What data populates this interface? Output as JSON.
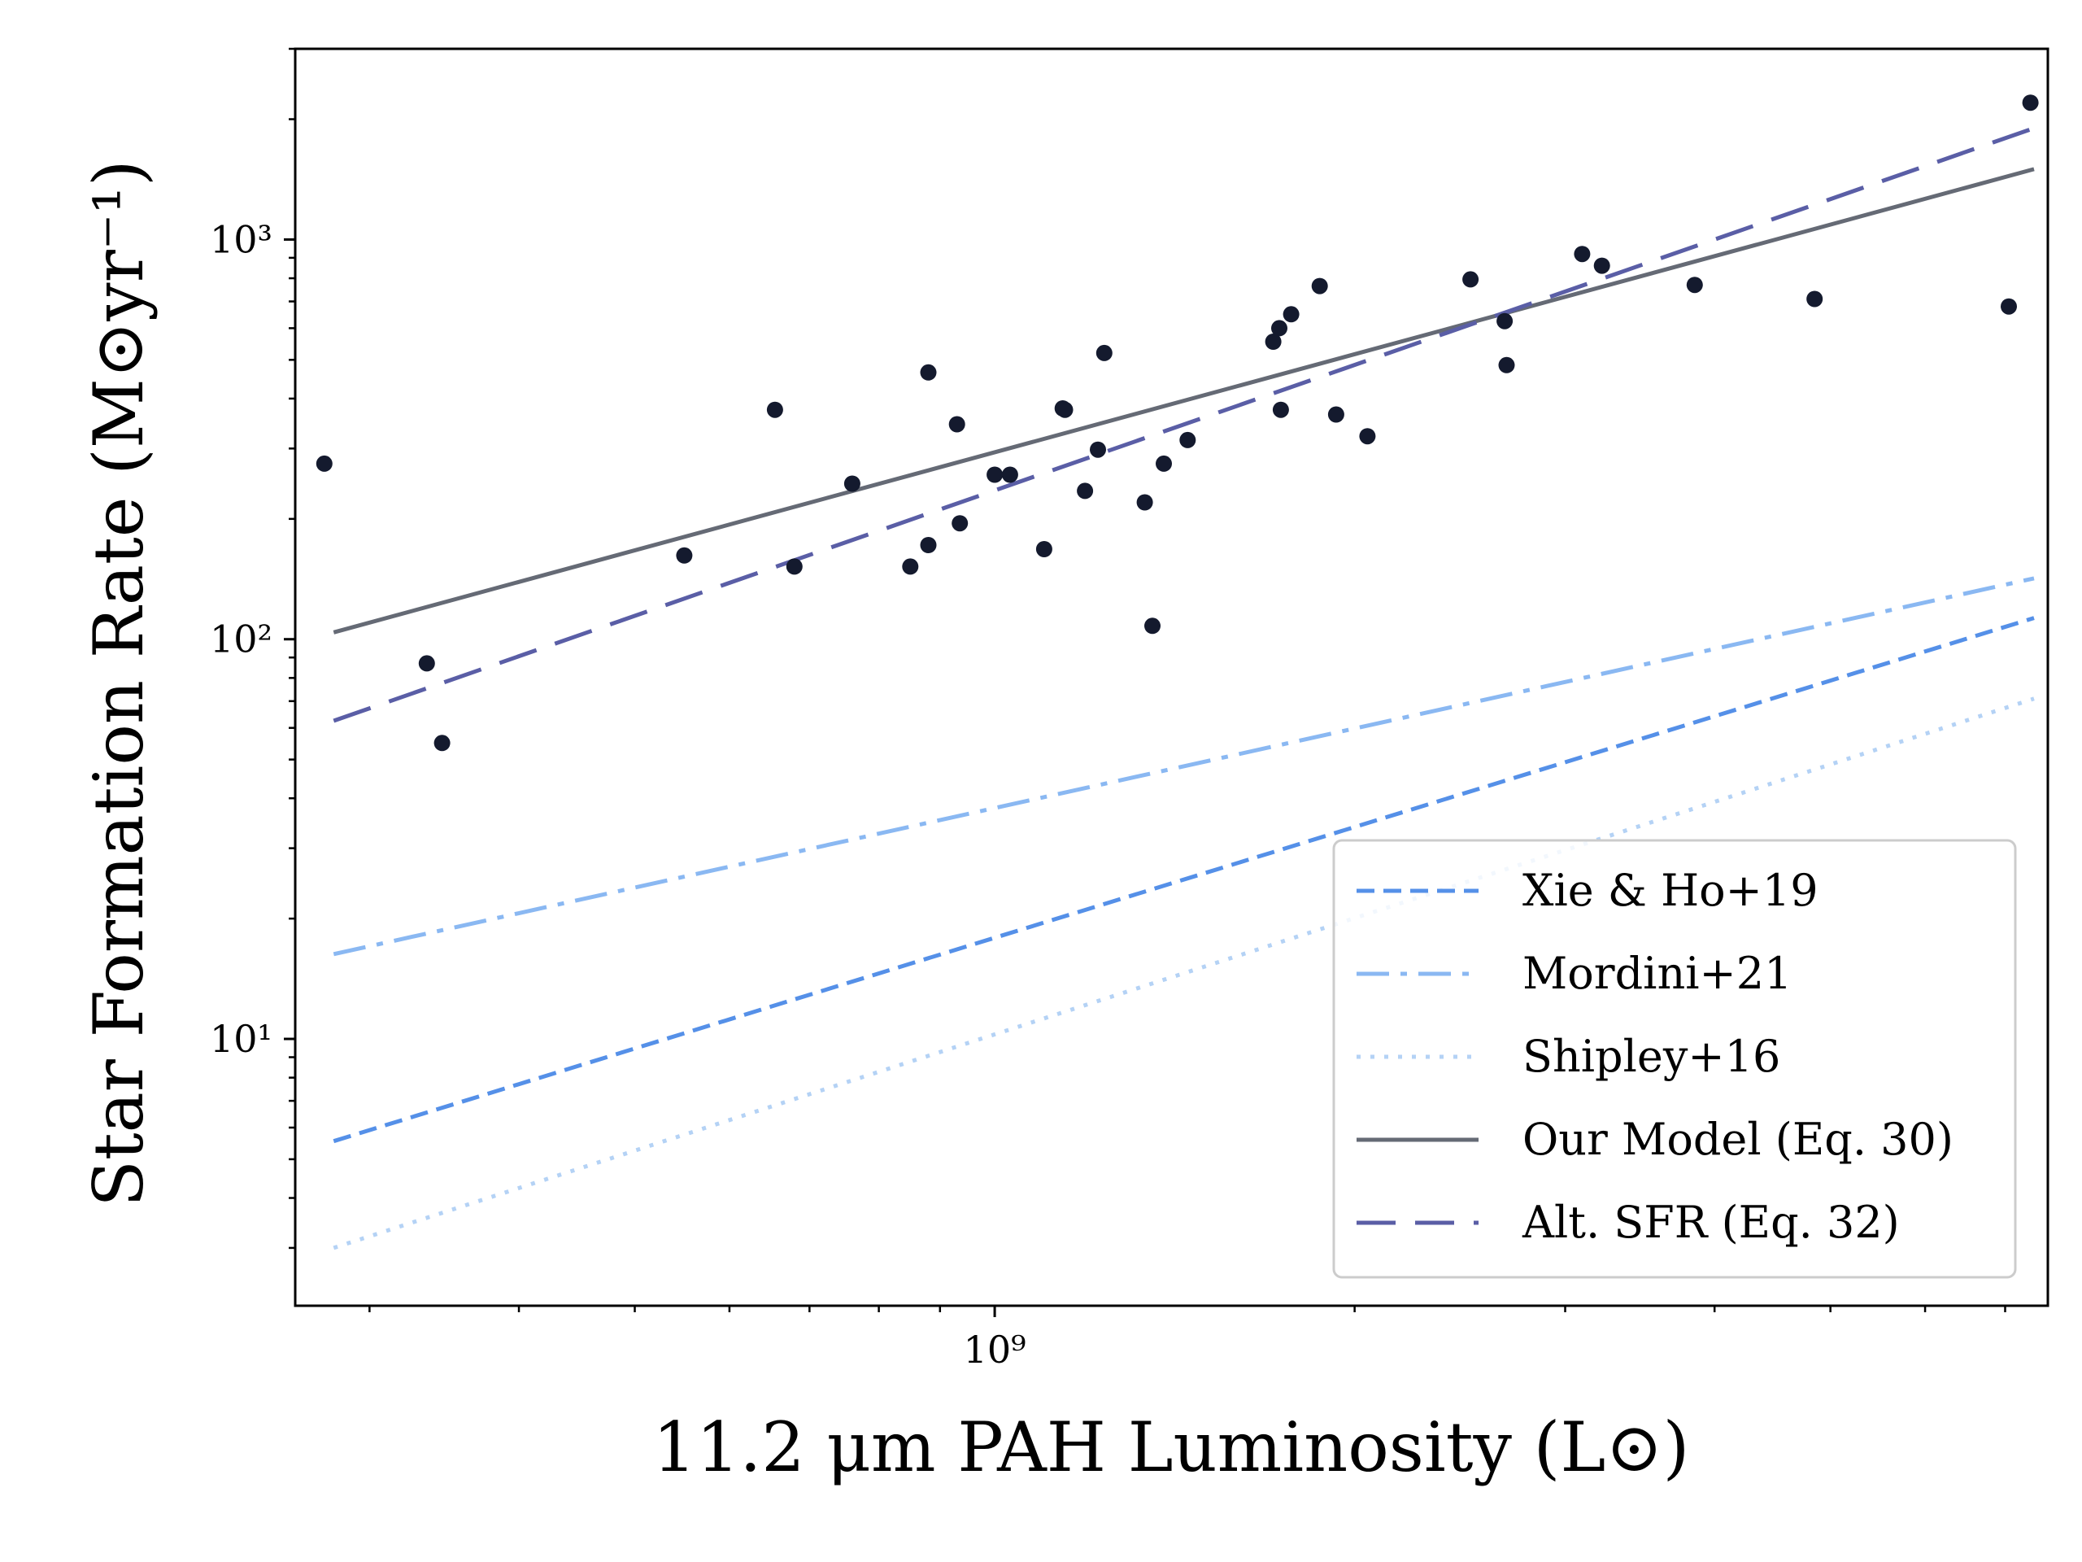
{
  "chart_data": {
    "type": "scatter",
    "title": "",
    "xlabel": "11.2 μm PAH Luminosity (L⊙)",
    "ylabel": "Star Formation Rate (M⊙yr⁻¹)",
    "xscale": "log",
    "yscale": "log",
    "xlim": [
      260000000.0,
      7600000000.0
    ],
    "ylim": [
      2.15,
      3000
    ],
    "x_ticks": [
      {
        "value": 1000000000.0,
        "label": "10⁹"
      }
    ],
    "y_ticks": [
      {
        "value": 10,
        "label": "10¹"
      },
      {
        "value": 100,
        "label": "10²"
      },
      {
        "value": 1000,
        "label": "10³"
      }
    ],
    "grid": false,
    "legend_position": "lower-right",
    "points": {
      "name": "Galaxies",
      "color": "#141a2e",
      "x": [
        275000000.0,
        335000000.0,
        345000000.0,
        550000000.0,
        655000000.0,
        680000000.0,
        760000000.0,
        850000000.0,
        880000000.0,
        880000000.0,
        930000000.0,
        935000000.0,
        1000000000.0,
        1030000000.0,
        1100000000.0,
        1140000000.0,
        1145000000.0,
        1190000000.0,
        1220000000.0,
        1235000000.0,
        1335000000.0,
        1355000000.0,
        1385000000.0,
        1450000000.0,
        1710000000.0,
        1730000000.0,
        1735000000.0,
        1770000000.0,
        1870000000.0,
        1930000000.0,
        2050000000.0,
        2500000000.0,
        2670000000.0,
        2680000000.0,
        3100000000.0,
        3220000000.0,
        3850000000.0,
        4850000000.0,
        7050000000.0,
        7350000000.0
      ],
      "y": [
        275,
        87,
        55,
        162,
        375,
        152,
        245,
        152,
        465,
        172,
        345,
        195,
        258,
        258,
        168,
        378,
        375,
        235,
        298,
        520,
        220,
        108,
        275,
        315,
        555,
        600,
        375,
        650,
        765,
        365,
        322,
        795,
        625,
        485,
        920,
        860,
        770,
        710,
        680,
        2200
      ]
    },
    "series": [
      {
        "name": "Xie & Ho+19",
        "style": "dashed",
        "color": "#5590e8",
        "x": [
          280000000.0,
          7400000000.0
        ],
        "y": [
          5.55,
          113
        ]
      },
      {
        "name": "Mordini+21",
        "style": "dashdot",
        "color": "#8ab8f2",
        "x": [
          280000000.0,
          7400000000.0
        ],
        "y": [
          16.3,
          142
        ]
      },
      {
        "name": "Shipley+16",
        "style": "dotted",
        "color": "#b4d2f5",
        "x": [
          280000000.0,
          7400000000.0
        ],
        "y": [
          3.0,
          71
        ]
      },
      {
        "name": "Our Model (Eq. 30)",
        "style": "solid",
        "color": "#656a75",
        "x": [
          280000000.0,
          7400000000.0
        ],
        "y": [
          104,
          1500
        ]
      },
      {
        "name": "Alt. SFR (Eq. 32)",
        "style": "longdash",
        "color": "#5a5ea6",
        "x": [
          280000000.0,
          7400000000.0
        ],
        "y": [
          62.5,
          1900
        ]
      }
    ]
  }
}
